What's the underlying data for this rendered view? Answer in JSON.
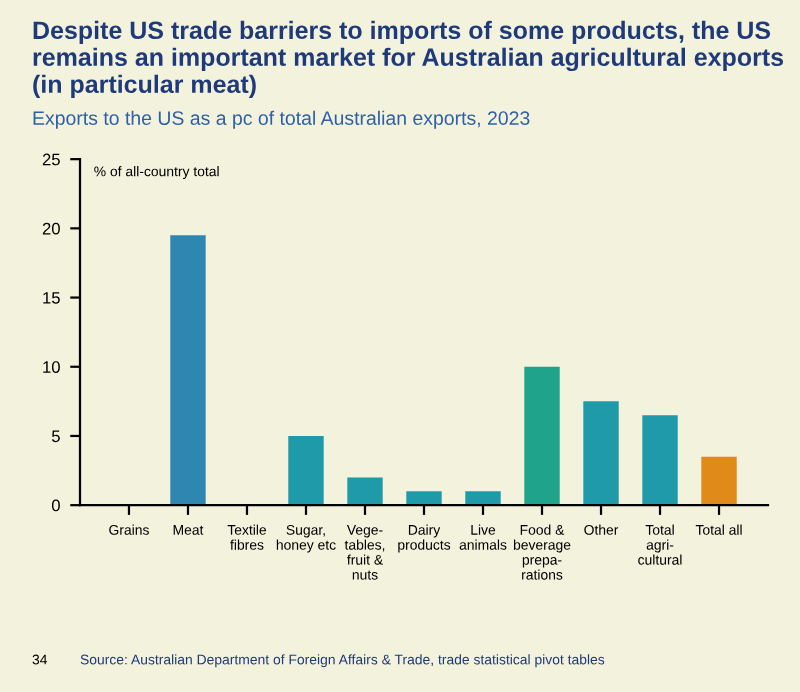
{
  "chart_data": {
    "type": "bar",
    "title": "Despite US trade barriers to imports of some products, the US remains an important market for Australian agricultural exports (in particular meat)",
    "subtitle": "Exports to the US as a pc of total Australian exports, 2023",
    "ylabel": "% of all-country total",
    "categories": [
      "Grains",
      "Meat",
      "Textile fibres",
      "Sugar, honey etc",
      "Vege-tables, fruit & nuts",
      "Dairy products",
      "Live animals",
      "Food & beverage prepa-rations",
      "Other",
      "Total agri-cultural",
      "Total all"
    ],
    "values": [
      0,
      19.5,
      0,
      5,
      2,
      1,
      1,
      10,
      7.5,
      6.5,
      3.5
    ],
    "colors": [
      "#1f9aa8",
      "#2f86b0",
      "#1f9aa8",
      "#1f9aa8",
      "#1f9aa8",
      "#1f9aa8",
      "#1f9aa8",
      "#1fa38a",
      "#1f9aa8",
      "#1f9aa8",
      "#e08a1a"
    ],
    "ylim": [
      0,
      25
    ],
    "yticks": [
      0,
      5,
      10,
      15,
      20,
      25
    ],
    "grid": false,
    "annotations": [
      "34",
      "Source: Australian Department of Foreign Affairs & Trade, trade statistical pivot tables"
    ]
  }
}
